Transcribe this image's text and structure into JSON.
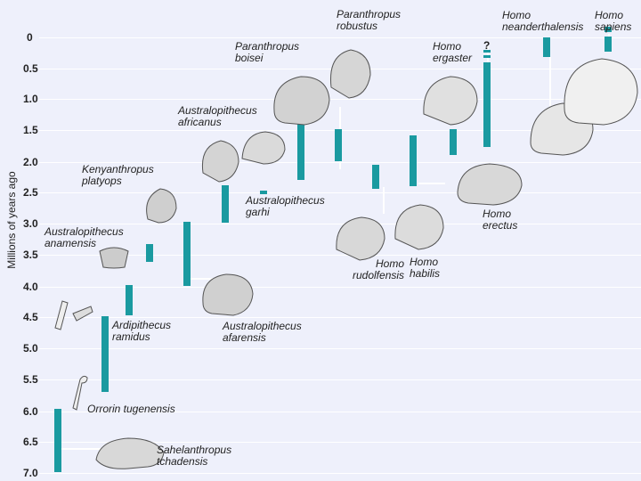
{
  "y_axis": {
    "label": "Millions of years ago",
    "ticks": [
      "0",
      "0.5",
      "1.0",
      "1.5",
      "2.0",
      "2.5",
      "3.0",
      "3.5",
      "4.0",
      "4.5",
      "5.0",
      "5.5",
      "6.0",
      "6.5",
      "7.0"
    ]
  },
  "species": [
    {
      "line1": "Paranthropus",
      "line2": "robustus"
    },
    {
      "line1": "Homo",
      "line2": "neanderthalensis"
    },
    {
      "line1": "Homo",
      "line2": "sapiens"
    },
    {
      "line1": "Paranthropus",
      "line2": "boisei"
    },
    {
      "line1": "Homo",
      "line2": "ergaster"
    },
    {
      "line1": "Australopithecus",
      "line2": "africanus"
    },
    {
      "line1": "Kenyanthropus",
      "line2": "platyops"
    },
    {
      "line1": "Australopithecus",
      "line2": "garhi"
    },
    {
      "line1": "Homo",
      "line2": "erectus"
    },
    {
      "line1": "Australopithecus",
      "line2": "anamensis"
    },
    {
      "line1": "Homo",
      "line2": "rudolfensis"
    },
    {
      "line1": "Homo",
      "line2": "habilis"
    },
    {
      "line1": "Ardipithecus",
      "line2": "ramidus"
    },
    {
      "line1": "Australopithecus",
      "line2": "afarensis"
    },
    {
      "line1": "Orrorin tugenensis",
      "line2": ""
    },
    {
      "line1": "Sahelanthropus",
      "line2": "tchadensis"
    }
  ],
  "uncertain_mark": "?",
  "colors": {
    "bar": "#1a9aa0",
    "background": "#eef0fb",
    "grid": "#ffffff"
  }
}
